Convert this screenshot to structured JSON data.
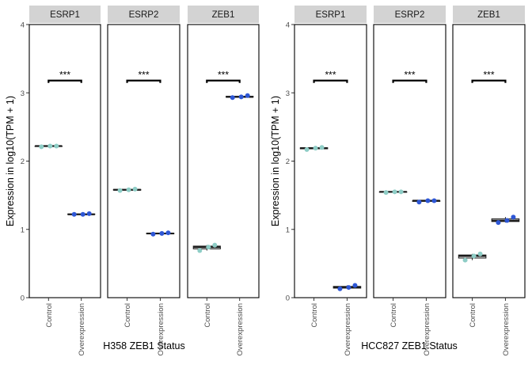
{
  "figure": {
    "colors": {
      "control": "#8ecdc6",
      "overexpression": "#2e57d6",
      "strip": "#d3d3d3",
      "box": "#1a1a1a"
    }
  },
  "chart_data": [
    {
      "type": "box",
      "xlabel": "H358 ZEB1 Status",
      "ylabel": "Expression in log10(TPM + 1)",
      "ylim": [
        0,
        4
      ],
      "yticks": [
        "0",
        "1",
        "2",
        "3",
        "4"
      ],
      "categories": [
        "Control",
        "Overexpression"
      ],
      "facets": [
        {
          "name": "ESRP1",
          "significance": "***",
          "control": [
            2.21,
            2.22,
            2.22
          ],
          "overexpression": [
            1.22,
            1.22,
            1.23
          ]
        },
        {
          "name": "ESRP2",
          "significance": "***",
          "control": [
            1.57,
            1.58,
            1.59
          ],
          "overexpression": [
            0.93,
            0.94,
            0.95
          ]
        },
        {
          "name": "ZEB1",
          "significance": "***",
          "control": [
            0.69,
            0.74,
            0.77
          ],
          "overexpression": [
            2.93,
            2.94,
            2.96
          ]
        }
      ]
    },
    {
      "type": "box",
      "xlabel": "HCC827 ZEB1 Status",
      "ylabel": "Expression in log10(TPM + 1)",
      "ylim": [
        0,
        4
      ],
      "yticks": [
        "0",
        "1",
        "2",
        "3",
        "4"
      ],
      "categories": [
        "Control",
        "Overexpression"
      ],
      "facets": [
        {
          "name": "ESRP1",
          "significance": "***",
          "control": [
            2.17,
            2.19,
            2.2
          ],
          "overexpression": [
            0.13,
            0.15,
            0.18
          ]
        },
        {
          "name": "ESRP2",
          "significance": "***",
          "control": [
            1.54,
            1.55,
            1.55
          ],
          "overexpression": [
            1.4,
            1.42,
            1.42
          ]
        },
        {
          "name": "ZEB1",
          "significance": "***",
          "control": [
            0.55,
            0.61,
            0.64
          ],
          "overexpression": [
            1.1,
            1.13,
            1.18
          ]
        }
      ]
    }
  ]
}
